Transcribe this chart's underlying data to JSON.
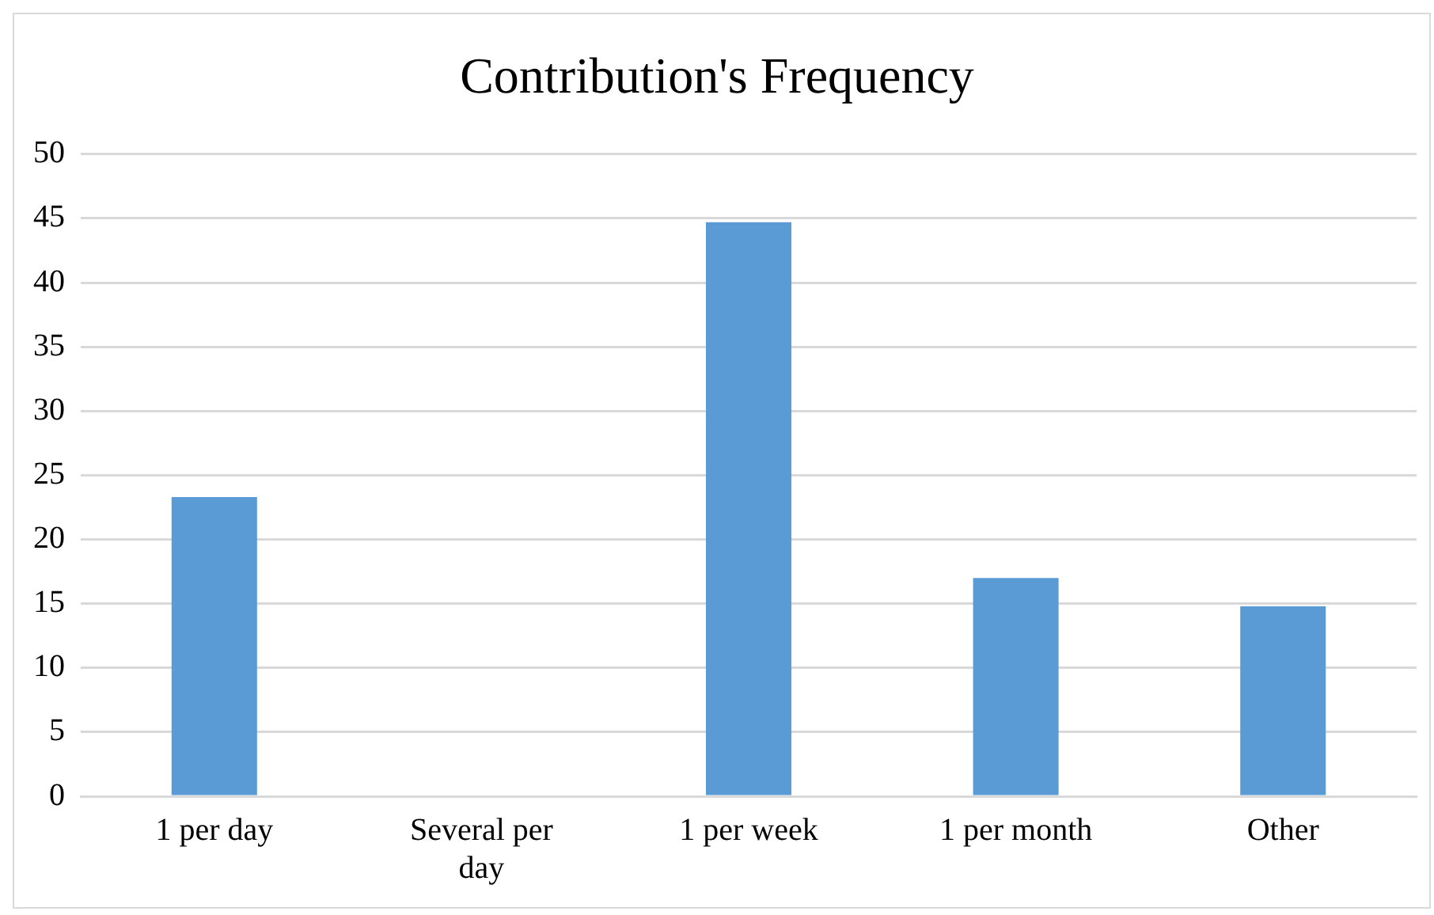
{
  "chart_data": {
    "type": "bar",
    "title": "Contribution's Frequency",
    "categories": [
      "1 per day",
      "Several per day",
      "1 per week",
      "1 per month",
      "Other"
    ],
    "values": [
      23.3,
      0,
      44.7,
      17.0,
      14.8
    ],
    "color": "#5b9bd5",
    "ylim": [
      0,
      50
    ],
    "yticks": [
      0,
      5,
      10,
      15,
      20,
      25,
      30,
      35,
      40,
      45,
      50
    ],
    "grid": "y",
    "legend": false
  }
}
